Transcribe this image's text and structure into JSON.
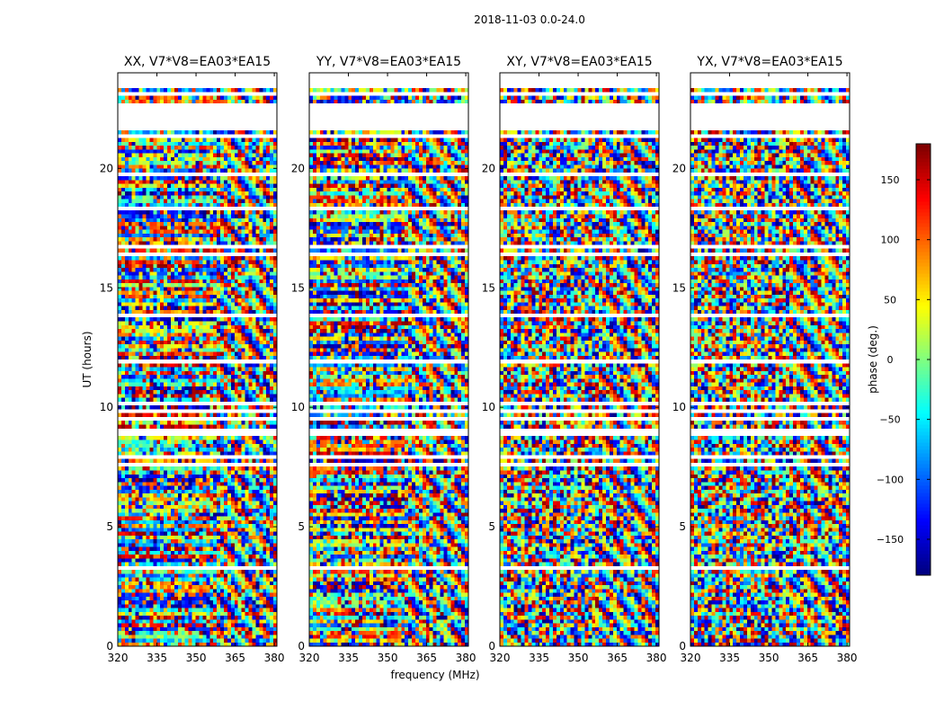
{
  "figure": {
    "suptitle": "2018-11-03 0.0-24.0"
  },
  "colorbar": {
    "label": "phase (deg.)",
    "ticks": [
      150,
      100,
      50,
      0,
      -50,
      -100,
      -150
    ],
    "tick_labels": [
      "150",
      "100",
      "50",
      "0",
      "−50",
      "−100",
      "−150"
    ],
    "range": [
      -180,
      180
    ],
    "colormap": "jet"
  },
  "chart_data": [
    {
      "type": "heatmap",
      "title": "XX, V7*V8=EA03*EA15",
      "xlabel": "",
      "ylabel": "UT (hours)",
      "xlim": [
        320,
        381
      ],
      "ylim": [
        0,
        24
      ],
      "xticks": [
        320,
        335,
        350,
        365,
        380
      ],
      "yticks": [
        0,
        5,
        10,
        15,
        20
      ],
      "value": "phase (deg.)",
      "zlim": [
        -180,
        180
      ]
    },
    {
      "type": "heatmap",
      "title": "YY, V7*V8=EA03*EA15",
      "xlabel": "frequency (MHz)",
      "ylabel": "",
      "xlim": [
        320,
        381
      ],
      "ylim": [
        0,
        24
      ],
      "xticks": [
        320,
        335,
        350,
        365,
        380
      ],
      "yticks": [
        0,
        5,
        10,
        15,
        20
      ],
      "value": "phase (deg.)",
      "zlim": [
        -180,
        180
      ]
    },
    {
      "type": "heatmap",
      "title": "XY, V7*V8=EA03*EA15",
      "xlabel": "",
      "ylabel": "",
      "xlim": [
        320,
        381
      ],
      "ylim": [
        0,
        24
      ],
      "xticks": [
        320,
        335,
        350,
        365,
        380
      ],
      "yticks": [
        0,
        5,
        10,
        15,
        20
      ],
      "value": "phase (deg.)",
      "zlim": [
        -180,
        180
      ]
    },
    {
      "type": "heatmap",
      "title": "YX, V7*V8=EA03*EA15",
      "xlabel": "",
      "ylabel": "",
      "xlim": [
        320,
        381
      ],
      "ylim": [
        0,
        24
      ],
      "xticks": [
        320,
        335,
        350,
        365,
        380
      ],
      "yticks": [
        0,
        5,
        10,
        15,
        20
      ],
      "value": "phase (deg.)",
      "zlim": [
        -180,
        180
      ]
    }
  ]
}
